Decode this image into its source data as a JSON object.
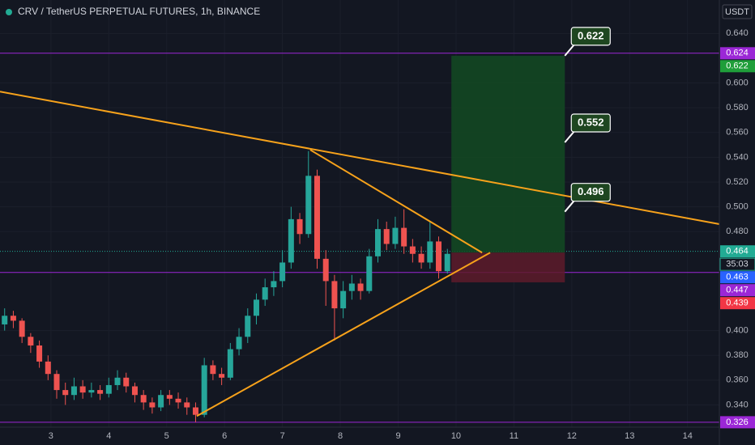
{
  "chart_data": {
    "type": "candlestick",
    "title": "CRV / TetherUS PERPETUAL FUTURES, 1h, BINANCE",
    "currency": "USDT",
    "countdown": "35:03",
    "up_color": "#26a69a",
    "down_color": "#ef5350",
    "grid": true,
    "xlim": [
      2.12,
      14.55
    ],
    "ylim": [
      0.322,
      0.667
    ],
    "xticks": [
      3,
      4,
      5,
      6,
      7,
      8,
      9,
      10,
      11,
      12,
      13,
      14
    ],
    "yticks": [
      {
        "value": 0.64,
        "label": "0.640"
      },
      {
        "value": 0.6,
        "label": "0.600"
      },
      {
        "value": 0.58,
        "label": "0.580"
      },
      {
        "value": 0.56,
        "label": "0.560"
      },
      {
        "value": 0.54,
        "label": "0.540"
      },
      {
        "value": 0.52,
        "label": "0.520"
      },
      {
        "value": 0.5,
        "label": "0.500"
      },
      {
        "value": 0.48,
        "label": "0.480"
      },
      {
        "value": 0.4,
        "label": "0.400"
      },
      {
        "value": 0.38,
        "label": "0.380"
      },
      {
        "value": 0.36,
        "label": "0.360"
      },
      {
        "value": 0.34,
        "label": "0.340"
      }
    ],
    "x": [
      2.2,
      2.35,
      2.5,
      2.65,
      2.8,
      2.95,
      3.1,
      3.25,
      3.4,
      3.55,
      3.7,
      3.85,
      4.0,
      4.15,
      4.3,
      4.45,
      4.6,
      4.75,
      4.9,
      5.05,
      5.2,
      5.35,
      5.5,
      5.65,
      5.8,
      5.95,
      6.1,
      6.25,
      6.4,
      6.55,
      6.7,
      6.85,
      7.0,
      7.15,
      7.3,
      7.45,
      7.6,
      7.75,
      7.9,
      8.05,
      8.2,
      8.35,
      8.5,
      8.65,
      8.8,
      8.95,
      9.1,
      9.25,
      9.4,
      9.55,
      9.7,
      9.85
    ],
    "open": [
      0.405,
      0.412,
      0.408,
      0.395,
      0.388,
      0.375,
      0.365,
      0.352,
      0.348,
      0.355,
      0.35,
      0.352,
      0.349,
      0.356,
      0.362,
      0.355,
      0.348,
      0.342,
      0.338,
      0.348,
      0.345,
      0.342,
      0.338,
      0.332,
      0.372,
      0.365,
      0.362,
      0.385,
      0.395,
      0.412,
      0.425,
      0.435,
      0.44,
      0.455,
      0.49,
      0.478,
      0.525,
      0.458,
      0.44,
      0.418,
      0.432,
      0.438,
      0.432,
      0.46,
      0.482,
      0.47,
      0.483,
      0.468,
      0.462,
      0.455,
      0.472,
      0.448
    ],
    "high": [
      0.418,
      0.416,
      0.41,
      0.398,
      0.392,
      0.38,
      0.368,
      0.358,
      0.362,
      0.36,
      0.358,
      0.356,
      0.362,
      0.368,
      0.366,
      0.358,
      0.352,
      0.346,
      0.352,
      0.352,
      0.35,
      0.346,
      0.342,
      0.378,
      0.376,
      0.37,
      0.39,
      0.402,
      0.418,
      0.43,
      0.442,
      0.448,
      0.465,
      0.5,
      0.495,
      0.545,
      0.53,
      0.465,
      0.445,
      0.44,
      0.445,
      0.442,
      0.466,
      0.49,
      0.488,
      0.492,
      0.498,
      0.474,
      0.468,
      0.488,
      0.476,
      0.466
    ],
    "low": [
      0.4,
      0.402,
      0.39,
      0.382,
      0.37,
      0.36,
      0.345,
      0.34,
      0.344,
      0.345,
      0.346,
      0.344,
      0.346,
      0.352,
      0.35,
      0.342,
      0.336,
      0.333,
      0.335,
      0.34,
      0.337,
      0.332,
      0.326,
      0.33,
      0.36,
      0.356,
      0.36,
      0.38,
      0.39,
      0.405,
      0.42,
      0.428,
      0.435,
      0.45,
      0.47,
      0.475,
      0.45,
      0.42,
      0.392,
      0.41,
      0.425,
      0.425,
      0.43,
      0.455,
      0.465,
      0.466,
      0.462,
      0.455,
      0.45,
      0.45,
      0.442,
      0.446
    ],
    "close": [
      0.412,
      0.408,
      0.395,
      0.388,
      0.375,
      0.365,
      0.352,
      0.348,
      0.355,
      0.35,
      0.352,
      0.349,
      0.356,
      0.362,
      0.355,
      0.348,
      0.342,
      0.338,
      0.348,
      0.345,
      0.342,
      0.338,
      0.332,
      0.372,
      0.365,
      0.362,
      0.385,
      0.395,
      0.412,
      0.425,
      0.435,
      0.44,
      0.455,
      0.49,
      0.478,
      0.525,
      0.458,
      0.44,
      0.418,
      0.432,
      0.438,
      0.432,
      0.46,
      0.482,
      0.47,
      0.483,
      0.468,
      0.462,
      0.455,
      0.472,
      0.448,
      0.462
    ],
    "trendlines": [
      {
        "color": "#f7a21b",
        "points": [
          [
            2.12,
            0.593
          ],
          [
            14.55,
            0.486
          ]
        ]
      },
      {
        "color": "#f7a21b",
        "points": [
          [
            7.48,
            0.546
          ],
          [
            10.45,
            0.463
          ]
        ]
      },
      {
        "color": "#f7a21b",
        "points": [
          [
            5.52,
            0.331
          ],
          [
            10.59,
            0.463
          ]
        ]
      }
    ],
    "position": {
      "x": [
        9.92,
        11.88
      ],
      "entry": 0.463,
      "target": 0.622,
      "stop": 0.439
    },
    "callouts": [
      0.622,
      0.552,
      0.496
    ],
    "price_lines": [
      {
        "value": 0.624,
        "color": "#9b27d6"
      },
      {
        "value": 0.447,
        "color": "#9b27d6"
      },
      {
        "value": 0.326,
        "color": "#9b27d6"
      }
    ],
    "last_price": {
      "value": 0.464,
      "color": "#22ab94"
    },
    "price_labels": [
      {
        "value": 0.624,
        "color": "#9b27d6"
      },
      {
        "value": 0.622,
        "color": "#1f9e3a"
      },
      {
        "value": 0.464,
        "color": "#22ab94"
      },
      {
        "value": 0.463,
        "color": "#2962ff"
      },
      {
        "value": 0.447,
        "color": "#9b27d6"
      },
      {
        "value": 0.439,
        "color": "#f23645"
      },
      {
        "value": 0.326,
        "color": "#9b27d6"
      }
    ]
  }
}
